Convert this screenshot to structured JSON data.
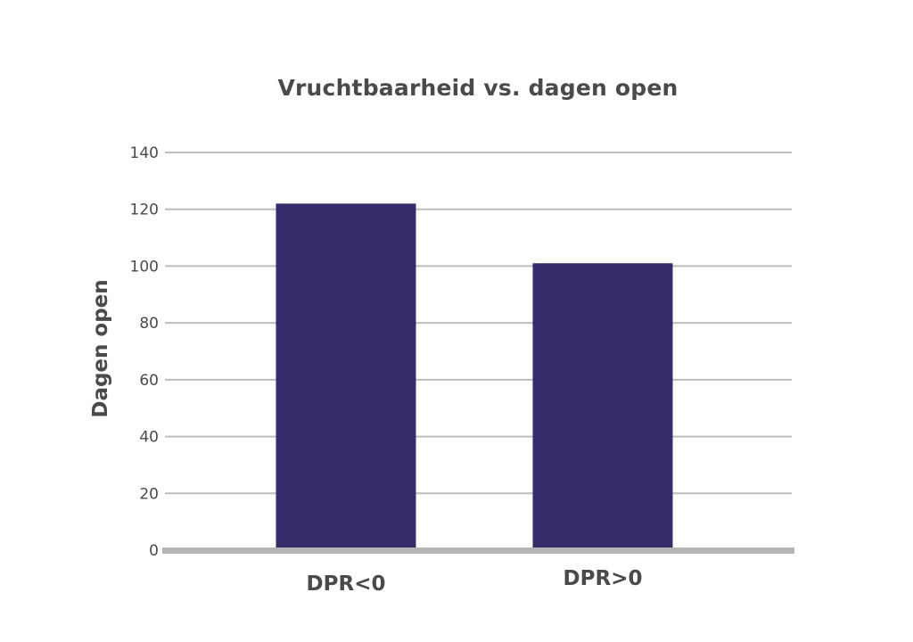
{
  "chart_data": {
    "type": "bar",
    "title": "Vruchtbaarheid vs. dagen open",
    "xlabel": "",
    "ylabel": "Dagen open",
    "categories": [
      "DPR<0",
      "DPR>0"
    ],
    "values": [
      122,
      101
    ],
    "ylim": [
      0,
      140
    ],
    "yticks": [
      0,
      20,
      40,
      60,
      80,
      100,
      120,
      140
    ],
    "grid": true,
    "legend": "none"
  },
  "colors": {
    "bar": "#372c6b",
    "grid": "#bdbdbd",
    "baseline": "#b4b4b4",
    "text": "#4a4a4a"
  }
}
